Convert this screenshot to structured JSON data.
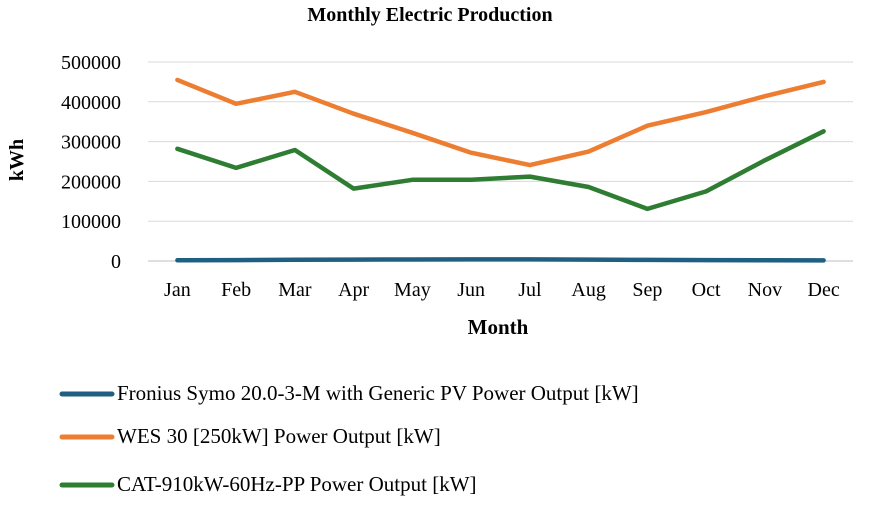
{
  "chart_data": {
    "type": "line",
    "title": "Monthly Electric Production",
    "xlabel": "Month",
    "ylabel": "kWh",
    "categories": [
      "Jan",
      "Feb",
      "Mar",
      "Apr",
      "May",
      "Jun",
      "Jul",
      "Aug",
      "Sep",
      "Oct",
      "Nov",
      "Dec"
    ],
    "ylim": [
      0,
      500000
    ],
    "yticks": [
      "0",
      "100000",
      "200000",
      "300000",
      "400000",
      "500000"
    ],
    "grid": true,
    "legend_position": "bottom",
    "series": [
      {
        "name": "Fronius Symo 20.0-3-M with Generic PV Power Output  [kW]",
        "color": "#1f5f82",
        "values": [
          1800,
          2200,
          3000,
          3500,
          3800,
          3900,
          3900,
          3500,
          2800,
          2300,
          1800,
          1600
        ]
      },
      {
        "name": "WES 30 [250kW] Power Output [kW]",
        "color": "#ed7d31",
        "values": [
          455000,
          395000,
          425000,
          370000,
          322000,
          272000,
          241000,
          275000,
          340000,
          374000,
          414000,
          450000
        ]
      },
      {
        "name": "CAT-910kW-60Hz-PP Power Output [kW]",
        "color": "#2e7d32",
        "values": [
          282000,
          234000,
          279000,
          182000,
          204000,
          204000,
          212000,
          186000,
          131000,
          175000,
          253000,
          326000
        ]
      }
    ]
  }
}
